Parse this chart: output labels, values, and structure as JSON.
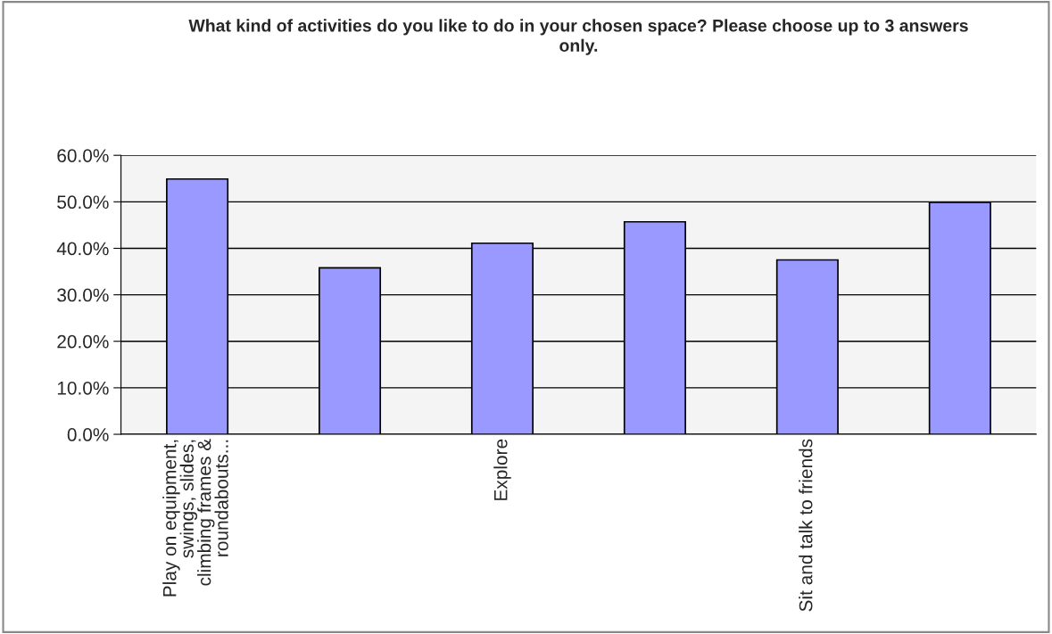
{
  "chart_data": {
    "type": "bar",
    "title": "What kind of activities do you like to do in your chosen space? Please choose up to 3 answers only.",
    "categories": [
      "Play on equipment, swings, slides, climbing frames & roundabouts...",
      null,
      "Explore",
      null,
      "Sit and talk to friends",
      null
    ],
    "values": [
      54.9,
      35.8,
      41.1,
      45.7,
      37.5,
      49.9
    ],
    "color": "#9999ff",
    "ylim": [
      0,
      60
    ],
    "yticks": [
      {
        "value": 0,
        "label": "0.0%"
      },
      {
        "value": 10,
        "label": "10.0%"
      },
      {
        "value": 20,
        "label": "20.0%"
      },
      {
        "value": 30,
        "label": "30.0%"
      },
      {
        "value": 40,
        "label": "40.0%"
      },
      {
        "value": 50,
        "label": "50.0%"
      },
      {
        "value": 60,
        "label": "60.0%"
      }
    ],
    "grid": "y"
  }
}
